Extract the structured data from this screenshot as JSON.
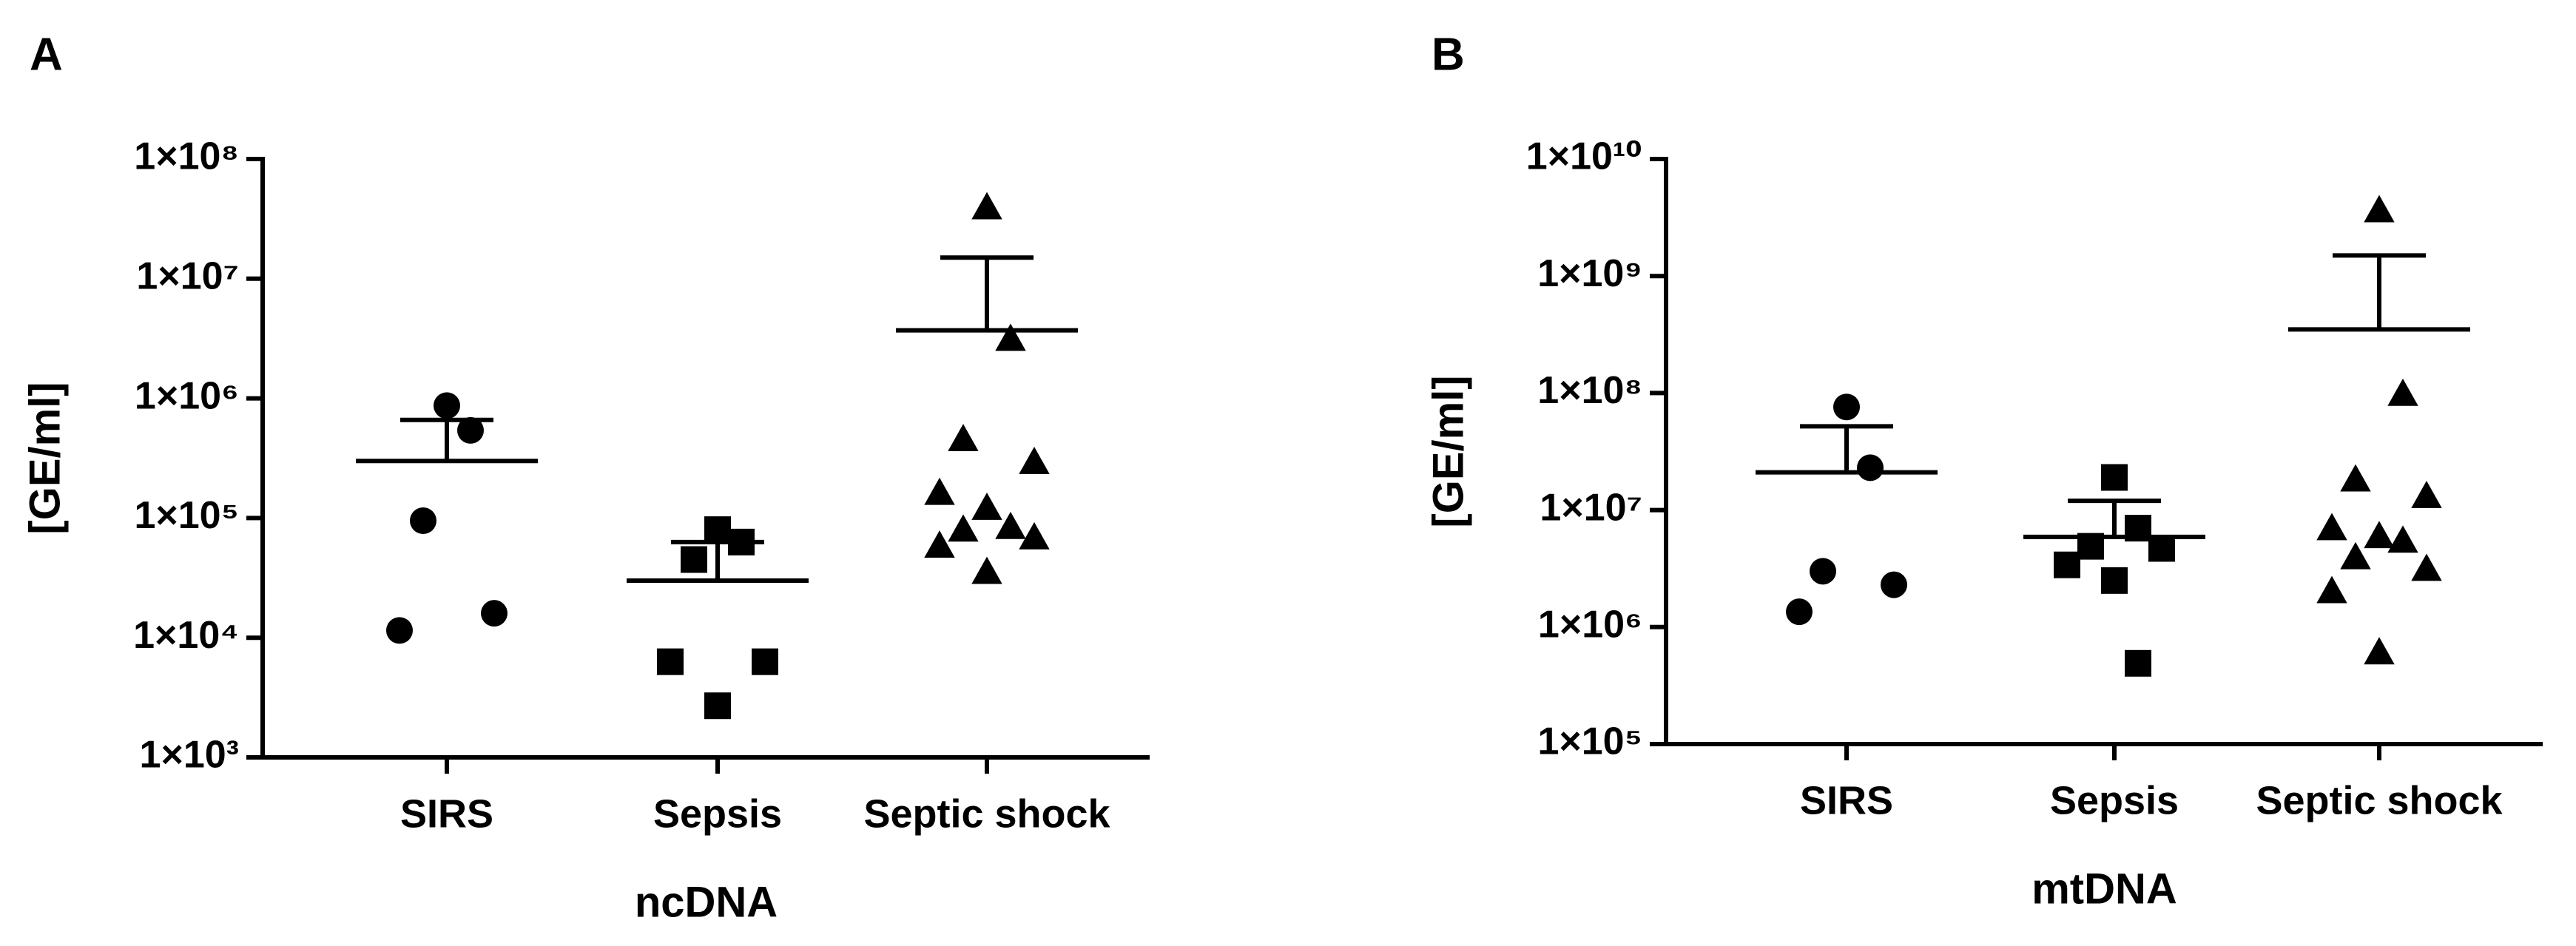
{
  "chart_data": [
    {
      "type": "scatter",
      "panel": "A",
      "ylabel": "[GE/ml]",
      "xlabel": "ncDNA",
      "log_scale": true,
      "color": "#000000",
      "categories": [
        "SIRS",
        "Sepsis",
        "Septic shock"
      ],
      "markers": [
        "circle",
        "square",
        "triangle"
      ],
      "values": [
        [
          870000,
          540000,
          95000,
          16000,
          11500
        ],
        [
          80000,
          63000,
          45000,
          6300,
          6300,
          2700
        ],
        [
          39000000,
          3100000,
          450000,
          290000,
          160000,
          120000,
          83000,
          79000,
          68000,
          58000,
          35000
        ]
      ],
      "means": [
        300000,
        30000,
        3700000
      ],
      "errors": [
        360000,
        33000,
        11300000
      ],
      "ylim": [
        1000,
        100000000
      ],
      "yticks": [
        {
          "value": 1000,
          "label": "1×10³"
        },
        {
          "value": 10000,
          "label": "1×10⁴"
        },
        {
          "value": 100000,
          "label": "1×10⁵"
        },
        {
          "value": 1000000,
          "label": "1×10⁶"
        },
        {
          "value": 10000000,
          "label": "1×10⁷"
        },
        {
          "value": 100000000,
          "label": "1×10⁸"
        }
      ]
    },
    {
      "type": "scatter",
      "panel": "B",
      "ylabel": "[GE/ml]",
      "xlabel": "mtDNA",
      "log_scale": true,
      "color": "#000000",
      "categories": [
        "SIRS",
        "Sepsis",
        "Septic shock"
      ],
      "markers": [
        "circle",
        "square",
        "triangle"
      ],
      "values": [
        [
          76000000,
          23000000,
          3000000,
          2300000,
          1350000
        ],
        [
          19000000,
          7000000,
          4900000,
          4700000,
          3400000,
          2500000,
          490000
        ],
        [
          3600000000,
          97000000,
          18000000,
          13000000,
          6900000,
          5900000,
          5400000,
          3900000,
          3100000,
          2000000,
          600000
        ]
      ],
      "means": [
        21000000,
        5900000,
        350000000
      ],
      "errors": [
        31000000,
        6100000,
        1150000000
      ],
      "ylim": [
        100000,
        10000000000
      ],
      "yticks": [
        {
          "value": 100000,
          "label": "1×10⁵"
        },
        {
          "value": 1000000,
          "label": "1×10⁶"
        },
        {
          "value": 10000000,
          "label": "1×10⁷"
        },
        {
          "value": 100000000,
          "label": "1×10⁸"
        },
        {
          "value": 1000000000,
          "label": "1×10⁹"
        },
        {
          "value": 10000000000,
          "label": "1×10¹⁰"
        }
      ]
    }
  ]
}
